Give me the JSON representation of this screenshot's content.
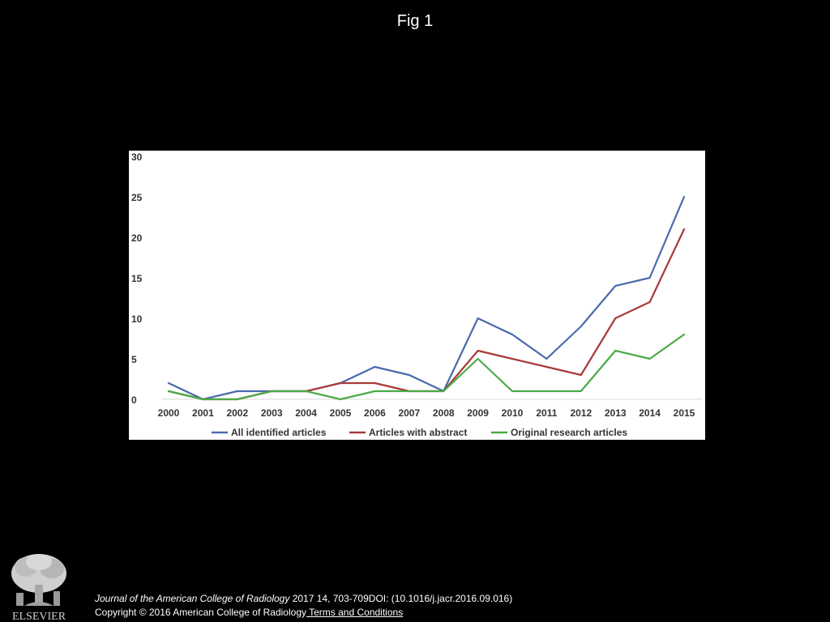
{
  "slide": {
    "title": "Fig 1"
  },
  "colors": {
    "all_identified": "#4a6aad",
    "with_abstract": "#a83a3a",
    "original_research": "#4aaa46",
    "background": "#000000",
    "panel": "#ffffff"
  },
  "chart_data": {
    "type": "line",
    "x": [
      "2000",
      "2001",
      "2002",
      "2003",
      "2004",
      "2005",
      "2006",
      "2007",
      "2008",
      "2009",
      "2010",
      "2011",
      "2012",
      "2013",
      "2014",
      "2015"
    ],
    "series": [
      {
        "name": "All identified articles",
        "color": "#4a6aad",
        "values": [
          2,
          0,
          1,
          1,
          1,
          2,
          4,
          3,
          1,
          10,
          8,
          5,
          9,
          14,
          15,
          25
        ]
      },
      {
        "name": "Articles with abstract",
        "color": "#a83a3a",
        "values": [
          1,
          0,
          0,
          1,
          1,
          2,
          2,
          1,
          1,
          6,
          5,
          4,
          3,
          10,
          12,
          21
        ]
      },
      {
        "name": "Original research articles",
        "color": "#4aaa46",
        "values": [
          1,
          0,
          0,
          1,
          1,
          0,
          1,
          1,
          1,
          5,
          1,
          1,
          1,
          6,
          5,
          8
        ]
      }
    ],
    "yticks": [
      "0",
      "5",
      "10",
      "15",
      "20",
      "25",
      "30"
    ],
    "ylim": [
      0,
      30
    ],
    "grid": false,
    "legend_position": "bottom"
  },
  "citation": {
    "journal": "Journal of the American College of Radiology",
    "details": " 2017 14, 703-709DOI: (10.1016/j.jacr.2016.09.016)",
    "copyright": "Copyright © 2016 American College of Radiology",
    "terms_link": " Terms and Conditions"
  },
  "logo": {
    "wordmark": "ELSEVIER"
  }
}
